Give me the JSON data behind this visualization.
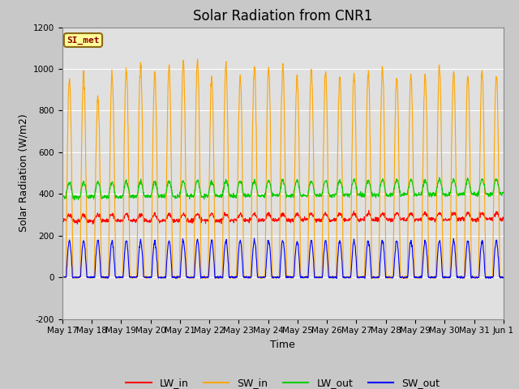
{
  "title": "Solar Radiation from CNR1",
  "xlabel": "Time",
  "ylabel": "Solar Radiation (W/m2)",
  "ylim": [
    -200,
    1200
  ],
  "yticks": [
    -200,
    0,
    200,
    400,
    600,
    800,
    1000,
    1200
  ],
  "xtick_labels": [
    "May 17",
    "May 18",
    "May 19",
    "May 20",
    "May 21",
    "May 22",
    "May 23",
    "May 24",
    "May 25",
    "May 26",
    "May 27",
    "May 28",
    "May 29",
    "May 30",
    "May 31",
    "Jun 1"
  ],
  "station_label": "SI_met",
  "station_label_color": "#8B0000",
  "station_box_facecolor": "#FFFF99",
  "station_box_edgecolor": "#8B6914",
  "colors": {
    "LW_in": "#FF0000",
    "SW_in": "#FFA500",
    "LW_out": "#00CC00",
    "SW_out": "#0000FF"
  },
  "legend_labels": [
    "LW_in",
    "SW_in",
    "LW_out",
    "SW_out"
  ],
  "background_color": "#C8C8C8",
  "plot_bg_color": "#E0E0E0",
  "grid_color": "#FFFFFF",
  "title_fontsize": 12,
  "label_fontsize": 9,
  "tick_fontsize": 7.5
}
